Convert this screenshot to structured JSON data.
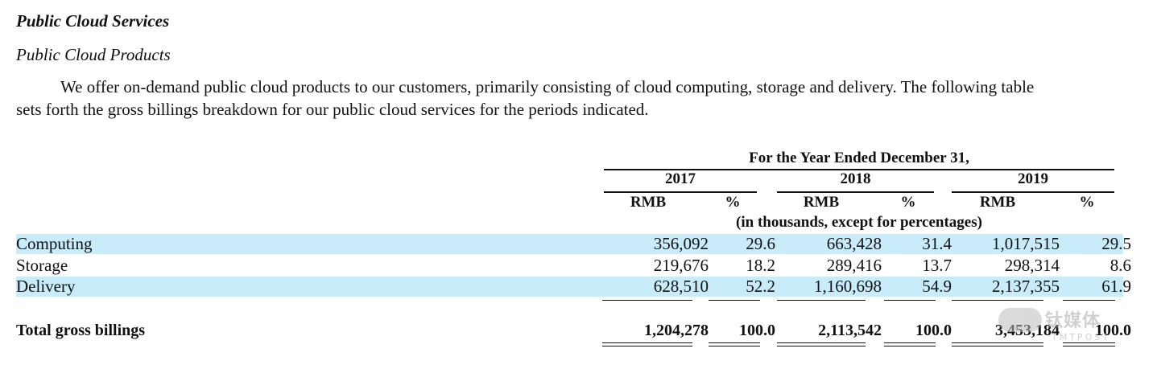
{
  "section_title": "Public Cloud Services",
  "subsection_title": "Public Cloud Products",
  "paragraph": {
    "line1": "We offer on-demand public cloud products to our customers, primarily consisting of cloud computing, storage and delivery. The following table",
    "line2": "sets forth the gross billings breakdown for our public cloud services for the periods indicated."
  },
  "table": {
    "period_header": "For the Year Ended December 31,",
    "years": [
      "2017",
      "2018",
      "2019"
    ],
    "col_headers": [
      "RMB",
      "%",
      "RMB",
      "%",
      "RMB",
      "%"
    ],
    "units_note": "(in thousands, except for percentages)",
    "rows": [
      {
        "label": "Computing",
        "values": [
          "356,092",
          "29.6",
          "663,428",
          "31.4",
          "1,017,515",
          "29.5"
        ]
      },
      {
        "label": "Storage",
        "values": [
          "219,676",
          "18.2",
          "289,416",
          "13.7",
          "298,314",
          "8.6"
        ]
      },
      {
        "label": "Delivery",
        "values": [
          "628,510",
          "52.2",
          "1,160,698",
          "54.9",
          "2,137,355",
          "61.9"
        ]
      }
    ],
    "total": {
      "label": "Total gross billings",
      "values": [
        "1,204,278",
        "100.0",
        "2,113,542",
        "100.0",
        "3,453,184",
        "100.0"
      ]
    }
  },
  "watermark": {
    "text": "钛媒体",
    "subtext": "TMTPOST",
    "icon": "tmtpost-logo-icon"
  },
  "colors": {
    "highlight": "#c9ecfb",
    "text": "#111111"
  }
}
